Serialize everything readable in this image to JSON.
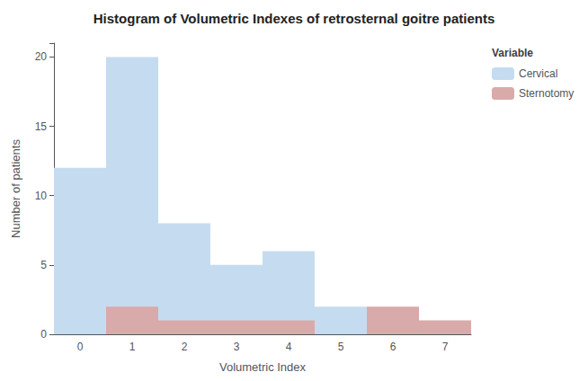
{
  "chart_data": {
    "type": "bar",
    "title": "Histogram of Volumetric Indexes of retrosternal goitre patients",
    "xlabel": "Volumetric Index",
    "ylabel": "Number of patients",
    "categories": [
      "0",
      "1",
      "2",
      "3",
      "4",
      "5",
      "6",
      "7"
    ],
    "series": [
      {
        "name": "Cervical",
        "color": "#C5DCF0",
        "values": [
          12,
          20,
          8,
          5,
          6,
          2,
          0,
          0
        ]
      },
      {
        "name": "Sternotomy",
        "color": "#D9AAAA",
        "values": [
          0,
          2,
          1,
          1,
          1,
          0,
          2,
          1
        ]
      }
    ],
    "legend_title": "Variable",
    "ylim": [
      0,
      21
    ],
    "yticks": [
      0,
      5,
      10,
      15,
      20
    ],
    "grid": false,
    "legend": "upper right"
  }
}
